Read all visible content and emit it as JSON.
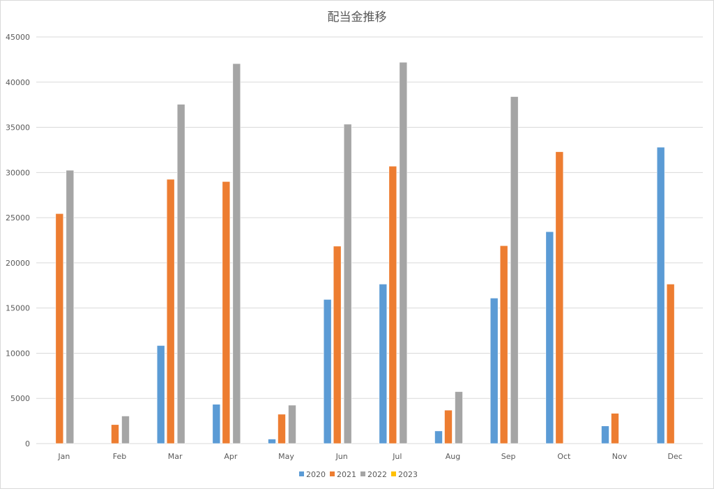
{
  "chart_data": {
    "type": "bar",
    "title": "配当金推移",
    "categories": [
      "Jan",
      "Feb",
      "Mar",
      "Apr",
      "May",
      "Jun",
      "Jul",
      "Aug",
      "Sep",
      "Oct",
      "Nov",
      "Dec"
    ],
    "series": [
      {
        "name": "2020",
        "color": "#5b9bd5",
        "values": [
          0,
          0,
          10850,
          4350,
          500,
          15950,
          17650,
          1400,
          16100,
          23450,
          1950,
          32800
        ]
      },
      {
        "name": "2021",
        "color": "#ed7d31",
        "values": [
          25450,
          2100,
          29250,
          29000,
          3250,
          21850,
          30700,
          3700,
          21900,
          32300,
          3350,
          17650
        ]
      },
      {
        "name": "2022",
        "color": "#a5a5a5",
        "values": [
          30250,
          3050,
          37550,
          42050,
          4250,
          35350,
          42200,
          5750,
          38400,
          0,
          0,
          0
        ]
      },
      {
        "name": "2023",
        "color": "#ffc000",
        "values": [
          0,
          0,
          0,
          0,
          0,
          0,
          0,
          0,
          0,
          0,
          0,
          0
        ]
      }
    ],
    "ylim": [
      0,
      45000
    ],
    "yticks": [
      0,
      5000,
      10000,
      15000,
      20000,
      25000,
      30000,
      35000,
      40000,
      45000
    ],
    "grid": true,
    "legend": "bottom"
  }
}
